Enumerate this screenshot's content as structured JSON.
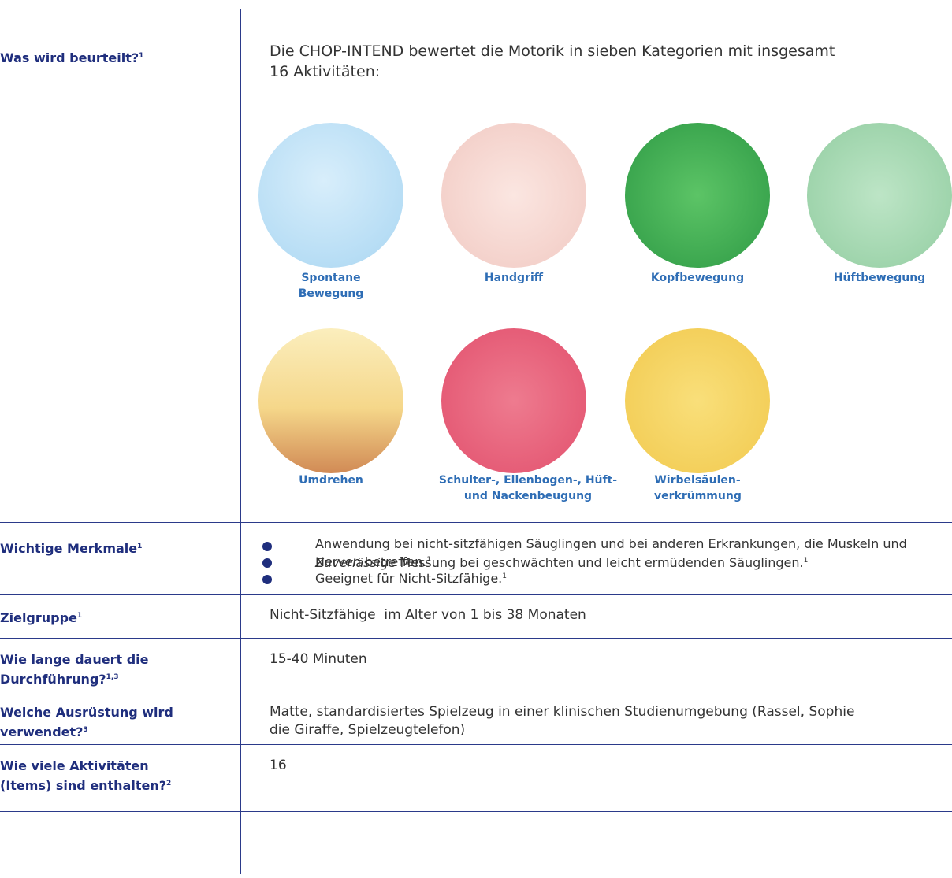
{
  "rows": [
    {
      "label": "Was wird beurteilt?",
      "sup": "1",
      "intro": "Die CHOP-INTEND bewertet die Motorik in sieben Kategorien mit insgesamt 16 Aktivitäten:",
      "categories": [
        "Spontane Bewegung",
        "Handgriff",
        "Kopfbewegung",
        "Hüftbewegung",
        "Umdrehen",
        "Schulter-, Ellenbogen-, Hüft- und Nackenbeugung",
        "Wirbelsäulen-verkrümmung"
      ]
    },
    {
      "label": "Wichtige Merkmale",
      "sup": "1",
      "items": [
        {
          "text": "Anwendung bei nicht-sitzfähigen Säuglingen und bei anderen Erkrankungen, die Muskeln und Nerven betreffen.",
          "sup": "1"
        },
        {
          "em": "Zuverlässige",
          "text": " Messung bei geschwächten und leicht ermüdenden Säuglingen.",
          "sup": "1"
        },
        {
          "text": "Geeignet für Nicht-Sitzfähige.",
          "sup": "1"
        }
      ]
    },
    {
      "label": "Zielgruppe",
      "sup": "1",
      "text": "Nicht-Sitzfähige  im Alter von 1 bis 38 Monaten"
    },
    {
      "label": "Wie lange dauert die Durchführung?",
      "sup": "1,3",
      "text": "15-40 Minuten"
    },
    {
      "label": "Welche Ausrüstung wird verwendet?",
      "sup": "3",
      "text": "Matte, standardisiertes Spielzeug in einer klinischen Studienumgebung (Rassel, Sophie die Giraffe, Spielzeugtelefon)"
    },
    {
      "label": "Wie viele Aktivitäten (Items) sind enthalten?",
      "sup": "2",
      "text": "16"
    }
  ]
}
